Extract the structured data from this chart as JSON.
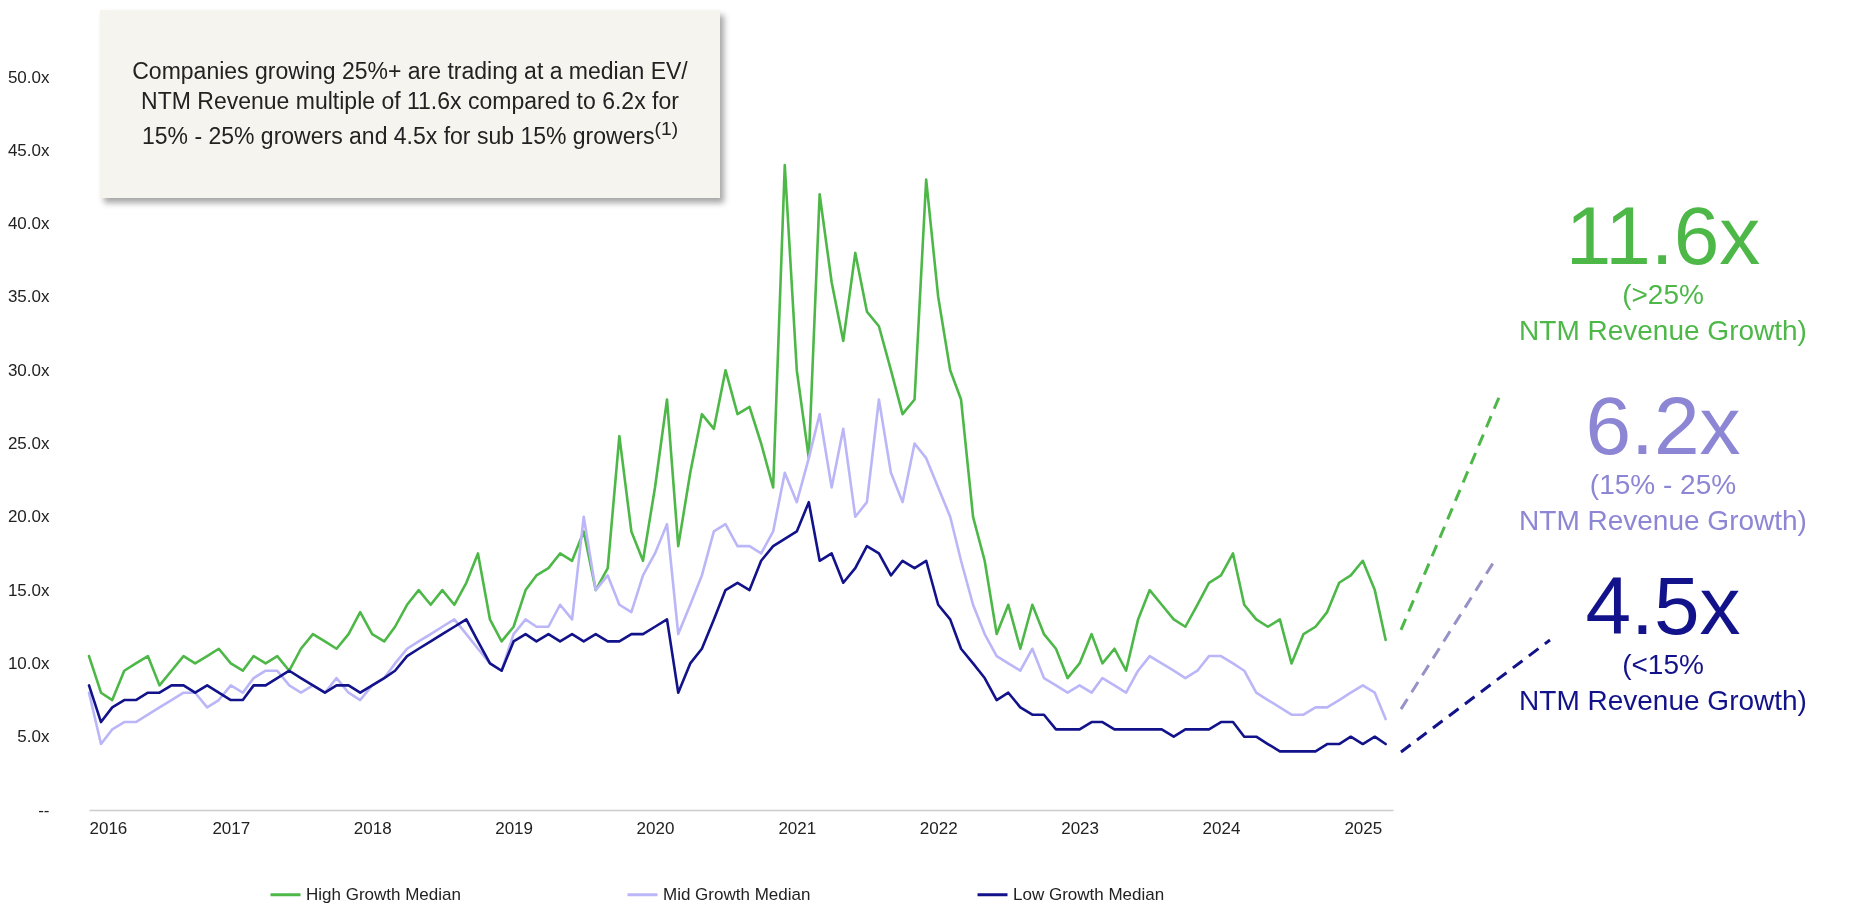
{
  "chart_data": {
    "type": "line",
    "annotations": [
      "Companies growing 25%+ are trading at a median EV/ NTM Revenue multiple of 11.6x compared to 6.2x for 15% - 25% growers and 4.5x for sub 15% growers$^{(1)}$",
      "11.6x\n(>25%\nNTM Revenue Growth)",
      "6.2x\n(15% - 25%\nNTM Revenue Growth)",
      "4.5x\n(<15%\nNTM Revenue Growth)"
    ],
    "x": [
      "2016-01",
      "2016-02",
      "2016-03",
      "2016-04",
      "2016-05",
      "2016-06",
      "2016-07",
      "2016-08",
      "2016-09",
      "2016-10",
      "2016-11",
      "2016-12",
      "2017-01",
      "2017-02",
      "2017-03",
      "2017-04",
      "2017-05",
      "2017-06",
      "2017-07",
      "2017-08",
      "2017-09",
      "2017-10",
      "2017-11",
      "2017-12",
      "2018-01",
      "2018-02",
      "2018-03",
      "2018-04",
      "2018-05",
      "2018-06",
      "2018-07",
      "2018-08",
      "2018-09",
      "2018-10",
      "2018-11",
      "2018-12",
      "2019-01",
      "2019-02",
      "2019-03",
      "2019-04",
      "2019-05",
      "2019-06",
      "2019-07",
      "2019-08",
      "2019-09",
      "2019-10",
      "2019-11",
      "2019-12",
      "2020-01",
      "2020-02",
      "2020-03",
      "2020-04",
      "2020-05",
      "2020-06",
      "2020-07",
      "2020-08",
      "2020-09",
      "2020-10",
      "2020-11",
      "2020-12",
      "2021-01",
      "2021-02",
      "2021-03",
      "2021-04",
      "2021-05",
      "2021-06",
      "2021-07",
      "2021-08",
      "2021-09",
      "2021-10",
      "2021-11",
      "2021-12",
      "2022-01",
      "2022-02",
      "2022-03",
      "2022-04",
      "2022-05",
      "2022-06",
      "2022-07",
      "2022-08",
      "2022-09",
      "2022-10",
      "2022-11",
      "2022-12",
      "2023-01",
      "2023-02",
      "2023-03",
      "2023-04",
      "2023-05",
      "2023-06",
      "2023-07",
      "2023-08",
      "2023-09",
      "2023-10",
      "2023-11",
      "2023-12",
      "2024-01",
      "2024-02",
      "2024-03",
      "2024-04",
      "2024-05",
      "2024-06",
      "2024-07",
      "2024-08",
      "2024-09",
      "2024-10",
      "2024-11",
      "2024-12",
      "2025-01",
      "2025-02",
      "2025-03"
    ],
    "series": [
      {
        "name": "High Growth Median",
        "color": "#4db848",
        "values": [
          10.5,
          8,
          7.5,
          9.5,
          10,
          10.5,
          8.5,
          9.5,
          10.5,
          10,
          10.5,
          11,
          10,
          9.5,
          10.5,
          10,
          10.5,
          9.5,
          11,
          12,
          11.5,
          11,
          12,
          13.5,
          12,
          11.5,
          12.5,
          14,
          15,
          14,
          15,
          14,
          15.5,
          17.5,
          13,
          11.5,
          12.5,
          15,
          16,
          16.5,
          17.5,
          17,
          19,
          15,
          16.5,
          25.5,
          19,
          17,
          22,
          28,
          18,
          23,
          27,
          26,
          30,
          27,
          27.5,
          25,
          22,
          44,
          30,
          24,
          42,
          36,
          32,
          38,
          34,
          33,
          30,
          27,
          28,
          43,
          35,
          30,
          28,
          20,
          17,
          12,
          14,
          11,
          14,
          12,
          11,
          9,
          10,
          12,
          10,
          11,
          9.5,
          13,
          15,
          14,
          13,
          12.5,
          14,
          15.5,
          16,
          17.5,
          14,
          13,
          12.5,
          13,
          10,
          12,
          12.5,
          13.5,
          15.5,
          16,
          17,
          15,
          11.6
        ]
      },
      {
        "name": "Mid Growth Median",
        "color": "#bbb6f7",
        "values": [
          8,
          4.5,
          5.5,
          6,
          6,
          6.5,
          7,
          7.5,
          8,
          8,
          7,
          7.5,
          8.5,
          8,
          9,
          9.5,
          9.5,
          8.5,
          8,
          8.5,
          8,
          9,
          8,
          7.5,
          8.5,
          9,
          10,
          11,
          11.5,
          12,
          12.5,
          13,
          12,
          11,
          10,
          9.5,
          12,
          13,
          12.5,
          12.5,
          14,
          13,
          20,
          15,
          16,
          14,
          13.5,
          16,
          17.5,
          19.5,
          12,
          14,
          16,
          19,
          19.5,
          18,
          18,
          17.5,
          19,
          23,
          21,
          24,
          27,
          22,
          26,
          20,
          21,
          28,
          23,
          21,
          25,
          24,
          22,
          20,
          17,
          14,
          12,
          10.5,
          10,
          9.5,
          11,
          9,
          8.5,
          8,
          8.5,
          8,
          9,
          8.5,
          8,
          9.5,
          10.5,
          10,
          9.5,
          9,
          9.5,
          10.5,
          10.5,
          10,
          9.5,
          8,
          7.5,
          7,
          6.5,
          6.5,
          7,
          7,
          7.5,
          8,
          8.5,
          8,
          6.2
        ]
      },
      {
        "name": "Low Growth Median",
        "color": "#12128a",
        "values": [
          8.5,
          6,
          7,
          7.5,
          7.5,
          8,
          8,
          8.5,
          8.5,
          8,
          8.5,
          8,
          7.5,
          7.5,
          8.5,
          8.5,
          9,
          9.5,
          9,
          8.5,
          8,
          8.5,
          8.5,
          8,
          8.5,
          9,
          9.5,
          10.5,
          11,
          11.5,
          12,
          12.5,
          13,
          11.5,
          10,
          9.5,
          11.5,
          12,
          11.5,
          12,
          11.5,
          12,
          11.5,
          12,
          11.5,
          11.5,
          12,
          12,
          12.5,
          13,
          8,
          10,
          11,
          13,
          15,
          15.5,
          15,
          17,
          18,
          18.5,
          19,
          21,
          17,
          17.5,
          15.5,
          16.5,
          18,
          17.5,
          16,
          17,
          16.5,
          17,
          14,
          13,
          11,
          10,
          9,
          7.5,
          8,
          7,
          6.5,
          6.5,
          5.5,
          5.5,
          5.5,
          6,
          6,
          5.5,
          5.5,
          5.5,
          5.5,
          5.5,
          5,
          5.5,
          5.5,
          5.5,
          6,
          6,
          5,
          5,
          4.5,
          4,
          4,
          4,
          4,
          4.5,
          4.5,
          5,
          4.5,
          5,
          4.5
        ]
      }
    ],
    "xlim": [
      "2016-01-01",
      "2025-03-20"
    ],
    "xticks": [
      "2016",
      "2017",
      "2018",
      "2019",
      "2020",
      "2021",
      "2022",
      "2023",
      "2024",
      "2025"
    ],
    "ylim": [
      0,
      50
    ],
    "yticks": [
      {
        "value": 0,
        "label": "--"
      },
      {
        "value": 5,
        "label": "5.0x"
      },
      {
        "value": 10,
        "label": "10.0x"
      },
      {
        "value": 15,
        "label": "15.0x"
      },
      {
        "value": 20,
        "label": "20.0x"
      },
      {
        "value": 25,
        "label": "25.0x"
      },
      {
        "value": 30,
        "label": "30.0x"
      },
      {
        "value": 35,
        "label": "35.0x"
      },
      {
        "value": 40,
        "label": "40.0x"
      },
      {
        "value": 45,
        "label": "45.0x"
      },
      {
        "value": 50,
        "label": "50.0x"
      }
    ],
    "grid": false,
    "legend": "bottom",
    "line_style": "solid",
    "marker": "none"
  }
}
